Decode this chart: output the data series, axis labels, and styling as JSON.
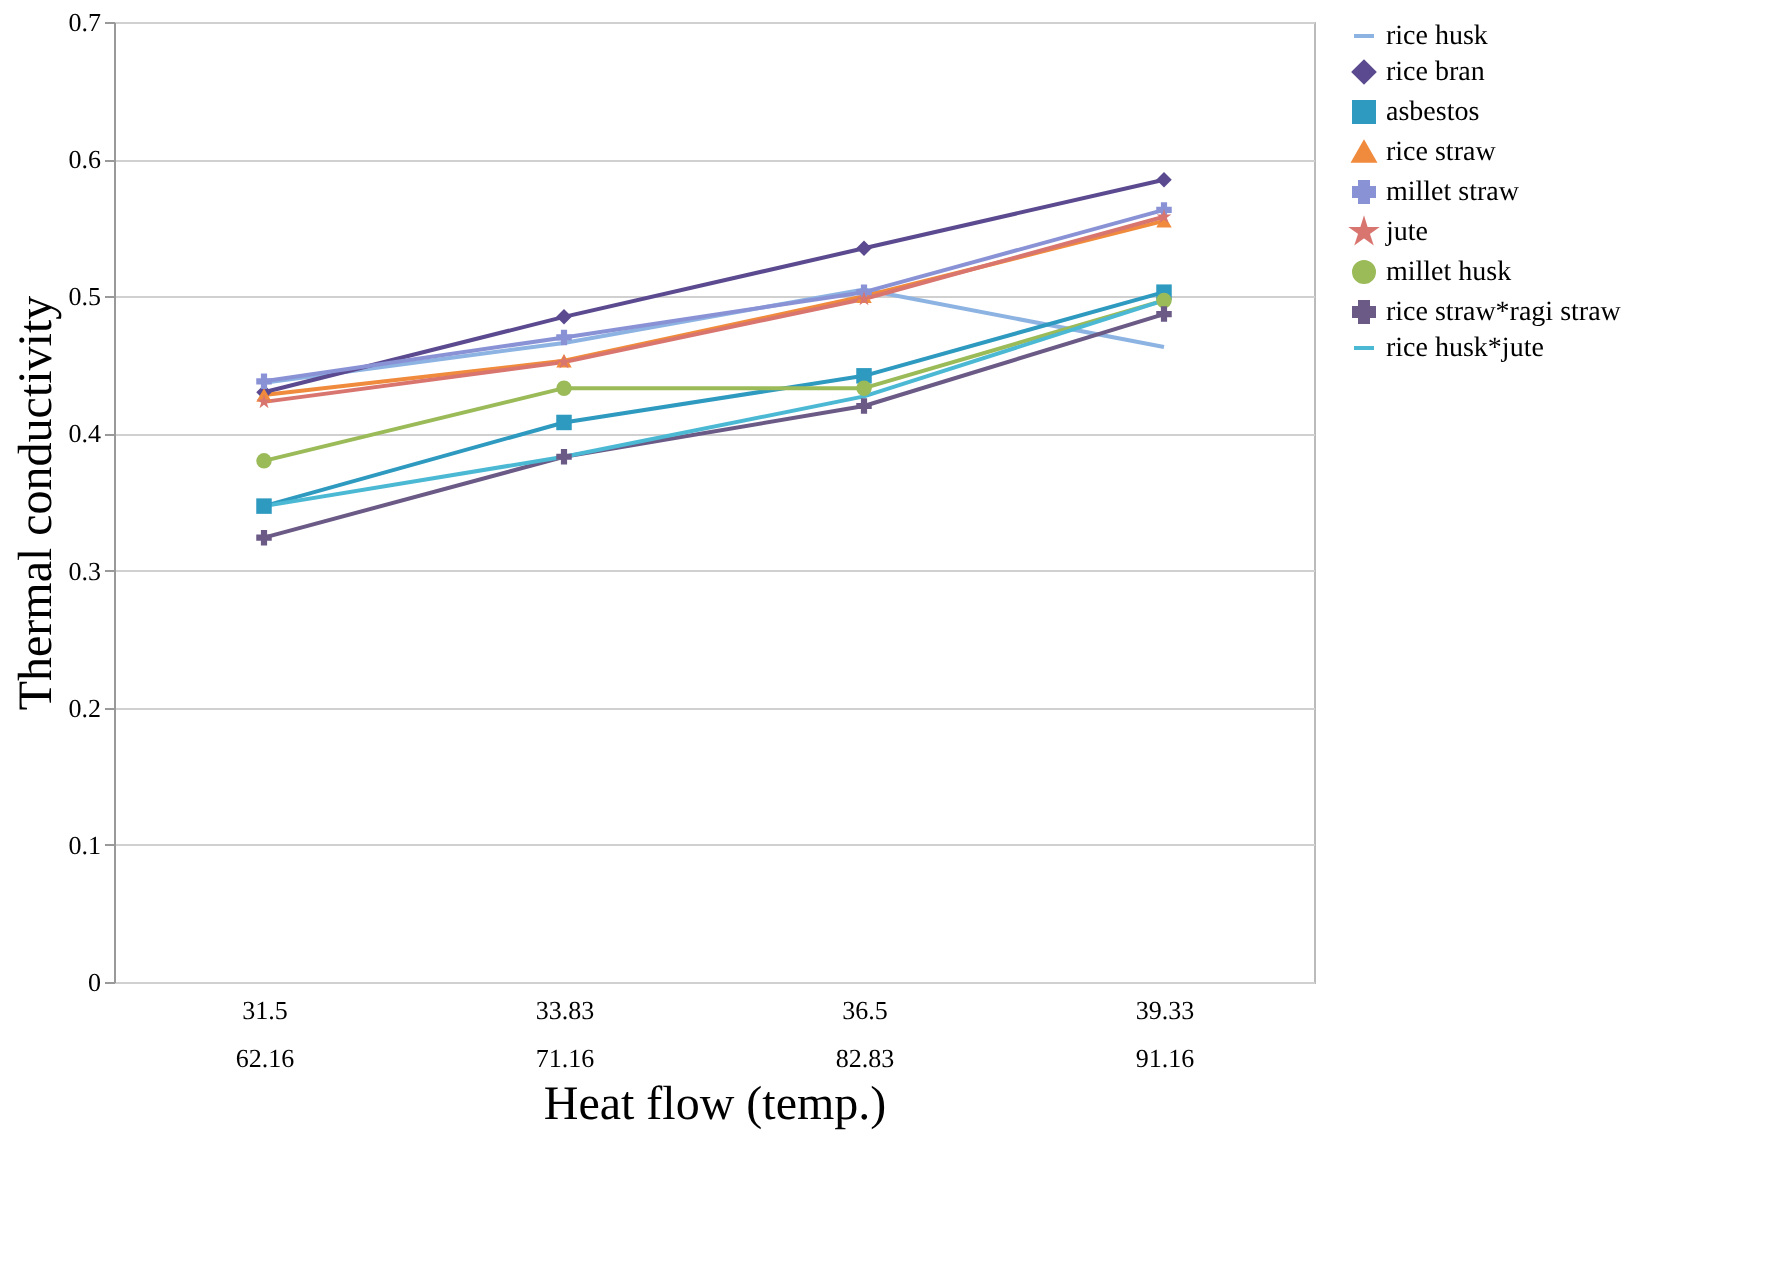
{
  "chart_data": {
    "type": "line",
    "xlabel": "Heat flow (temp.)",
    "ylabel": "Thermal conductivity",
    "categories": [
      "31.5\n62.16",
      "33.83\n71.16",
      "36.5\n82.83",
      "39.33\n91.16"
    ],
    "ylim": [
      0,
      0.7
    ],
    "yticks": [
      0,
      0.1,
      0.2,
      0.3,
      0.4,
      0.5,
      0.6,
      0.7
    ],
    "grid": "y",
    "legend": "right",
    "series": [
      {
        "name": "rice husk",
        "color": "#8db3e2",
        "marker": "none",
        "values": [
          0.437,
          0.466,
          0.505,
          0.463
        ]
      },
      {
        "name": "rice bran",
        "color": "#5b4a8f",
        "marker": "diamond",
        "values": [
          0.43,
          0.485,
          0.535,
          0.585
        ]
      },
      {
        "name": "asbestos",
        "color": "#2e9ac0",
        "marker": "square",
        "values": [
          0.347,
          0.408,
          0.442,
          0.503
        ]
      },
      {
        "name": "rice straw",
        "color": "#f08a3c",
        "marker": "triangle",
        "values": [
          0.428,
          0.453,
          0.5,
          0.555
        ]
      },
      {
        "name": "millet straw",
        "color": "#8a92d6",
        "marker": "cross",
        "values": [
          0.438,
          0.47,
          0.503,
          0.563
        ]
      },
      {
        "name": "jute",
        "color": "#d9756f",
        "marker": "star",
        "values": [
          0.423,
          0.452,
          0.498,
          0.558
        ]
      },
      {
        "name": "millet husk",
        "color": "#9bbb59",
        "marker": "circle",
        "values": [
          0.38,
          0.433,
          0.433,
          0.497
        ]
      },
      {
        "name": "rice straw*ragi straw",
        "color": "#6b5a86",
        "marker": "cross",
        "values": [
          0.324,
          0.383,
          0.42,
          0.487
        ]
      },
      {
        "name": "rice husk*jute",
        "color": "#4bb8d4",
        "marker": "none",
        "values": [
          0.347,
          0.383,
          0.427,
          0.497
        ]
      }
    ]
  }
}
